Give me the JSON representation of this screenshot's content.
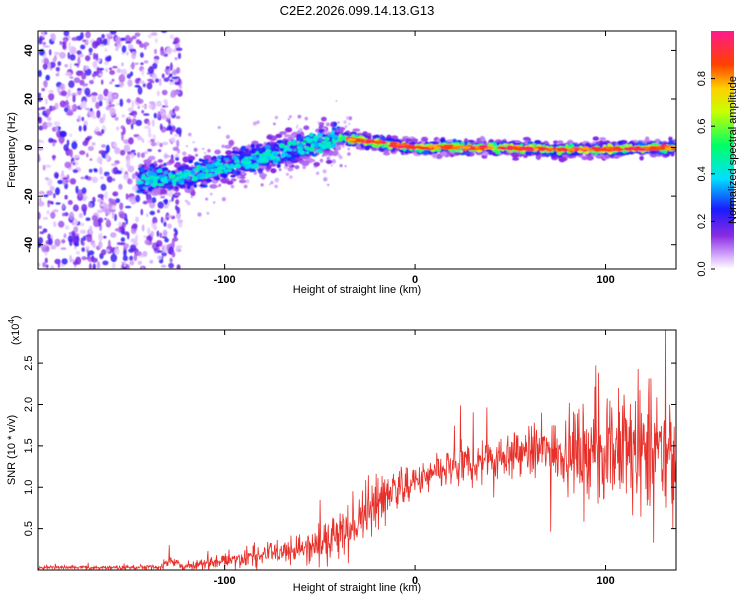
{
  "title": "C2E2.2026.099.14.13.G13",
  "chart_data": [
    {
      "type": "heatmap",
      "name": "spectrogram",
      "xlabel": "Height of straight line (km)",
      "ylabel": "Frequency (Hz)",
      "xlim": [
        -198,
        137
      ],
      "ylim": [
        -50,
        48
      ],
      "x_ticks": [
        -100,
        0,
        100
      ],
      "y_ticks": [
        -40,
        -20,
        0,
        20,
        40
      ],
      "colorbar": {
        "label": "Normalized spectral amplitude",
        "range": [
          0,
          1
        ],
        "ticks": [
          0.0,
          0.2,
          0.4,
          0.6,
          0.8
        ],
        "tick_labels": [
          "0.0",
          "0.2",
          "0.4",
          "0.6",
          "0.8"
        ]
      },
      "noise_region_x": [
        -198,
        -123
      ],
      "ridge": [
        {
          "x": -140,
          "y": -13
        },
        {
          "x": -122,
          "y": -12
        },
        {
          "x": -100,
          "y": -8
        },
        {
          "x": -80,
          "y": -4
        },
        {
          "x": -60,
          "y": 0
        },
        {
          "x": -40,
          "y": 4
        },
        {
          "x": -30,
          "y": 3
        },
        {
          "x": 0,
          "y": 0
        },
        {
          "x": 40,
          "y": 0
        },
        {
          "x": 80,
          "y": -1
        },
        {
          "x": 137,
          "y": 0
        }
      ]
    },
    {
      "type": "line",
      "name": "snr",
      "xlabel": "Height of straight line (km)",
      "ylabel": "SNR (10 * v/v)",
      "multiplier": "(x10",
      "multiplier_exp": "4",
      "xlim": [
        -198,
        137
      ],
      "ylim": [
        0,
        2.9
      ],
      "x_ticks": [
        -100,
        0,
        100
      ],
      "y_ticks": [
        0.5,
        1.0,
        1.5,
        2.0,
        2.5
      ],
      "y_tick_labels": [
        "0.5",
        "1.0",
        "1.5",
        "2.0",
        "2.5"
      ],
      "color": "#e8302a",
      "envelope": [
        {
          "x": -198,
          "base": 0.03,
          "amp": 0.02
        },
        {
          "x": -135,
          "base": 0.03,
          "amp": 0.03
        },
        {
          "x": -128,
          "base": 0.12,
          "amp": 0.08
        },
        {
          "x": -122,
          "base": 0.04,
          "amp": 0.04
        },
        {
          "x": -100,
          "base": 0.12,
          "amp": 0.1
        },
        {
          "x": -80,
          "base": 0.18,
          "amp": 0.12
        },
        {
          "x": -60,
          "base": 0.25,
          "amp": 0.18
        },
        {
          "x": -45,
          "base": 0.35,
          "amp": 0.25
        },
        {
          "x": -30,
          "base": 0.55,
          "amp": 0.35
        },
        {
          "x": -20,
          "base": 0.85,
          "amp": 0.35
        },
        {
          "x": -10,
          "base": 1.0,
          "amp": 0.25
        },
        {
          "x": 0,
          "base": 1.05,
          "amp": 0.2
        },
        {
          "x": 15,
          "base": 1.2,
          "amp": 0.25
        },
        {
          "x": 30,
          "base": 1.3,
          "amp": 0.28
        },
        {
          "x": 50,
          "base": 1.4,
          "amp": 0.3
        },
        {
          "x": 70,
          "base": 1.45,
          "amp": 0.4
        },
        {
          "x": 90,
          "base": 1.45,
          "amp": 0.55
        },
        {
          "x": 110,
          "base": 1.45,
          "amp": 0.75
        },
        {
          "x": 137,
          "base": 1.35,
          "amp": 0.75
        }
      ]
    }
  ]
}
